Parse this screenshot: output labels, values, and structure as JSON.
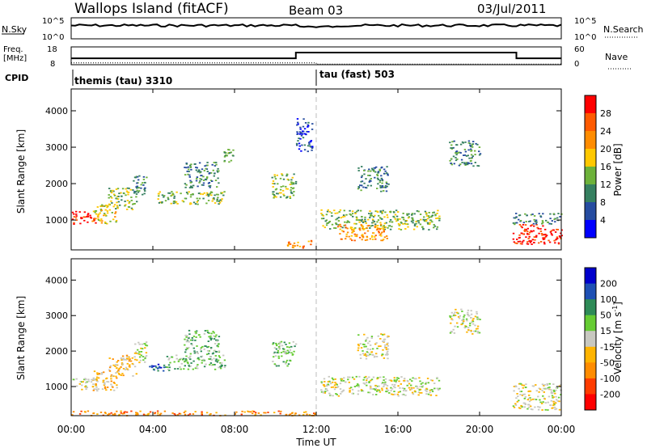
{
  "header": {
    "station": "Wallops Island (fitACF)",
    "beam": "Beam 03",
    "date": "03/Jul/2011"
  },
  "status_panels": {
    "nsky_label": "N.Sky",
    "nsky_ticks": [
      "10^5",
      "10^0"
    ],
    "nsearch_label": "N.Search",
    "nsearch_ticks": [
      "10^5",
      "10^0"
    ],
    "freq_label": "Freq.",
    "freq_unit": "[MHz]",
    "freq_ticks": [
      "18",
      "8"
    ],
    "nave_label": "Nave",
    "nave_ticks": [
      "60",
      "0"
    ],
    "cpid_label": "CPID",
    "cpid_segments": [
      {
        "name": "themis (tau) 3310",
        "start_hour": 0,
        "end_hour": 12
      },
      {
        "name": "tau (fast) 503",
        "start_hour": 12,
        "end_hour": 24
      }
    ],
    "freq_series": {
      "x_hours": [
        0,
        11,
        11,
        21.8,
        21.8,
        24
      ],
      "values_mhz": [
        11.6,
        11.6,
        14.8,
        14.8,
        11.6,
        11.6
      ]
    },
    "nave_series": {
      "x_hours": [
        0,
        12,
        12,
        24
      ],
      "values": [
        6,
        6,
        2,
        2
      ]
    }
  },
  "chart_data": [
    {
      "type": "heatmap",
      "name": "power",
      "ylabel": "Slant Range [km]",
      "yticks": [
        "1000",
        "2000",
        "3000",
        "4000"
      ],
      "ylim": [
        180,
        4600
      ],
      "xlim": [
        0,
        24
      ],
      "colorbar_label": "Power [dB]",
      "colorbar_ticks": [
        "4",
        "8",
        "12",
        "16",
        "20",
        "24",
        "28"
      ],
      "colorbar_colors": [
        "#0000ff",
        "#264ca0",
        "#368060",
        "#6db23a",
        "#ffc800",
        "#ff8c00",
        "#ff5a00",
        "#ff0000"
      ],
      "regions": [
        {
          "t": [
            0,
            1.2
          ],
          "r": [
            900,
            1250
          ],
          "level": 7
        },
        {
          "t": [
            1.0,
            2.2
          ],
          "r": [
            900,
            1450
          ],
          "level": 4
        },
        {
          "t": [
            1.8,
            3.2
          ],
          "r": [
            1300,
            1900
          ],
          "level": 3
        },
        {
          "t": [
            3.0,
            3.7
          ],
          "r": [
            1700,
            2300
          ],
          "level": 2
        },
        {
          "t": [
            4.2,
            7.5
          ],
          "r": [
            1450,
            1800
          ],
          "level": 3
        },
        {
          "t": [
            5.5,
            7.2
          ],
          "r": [
            1900,
            2600
          ],
          "level": 2
        },
        {
          "t": [
            7.4,
            7.9
          ],
          "r": [
            2600,
            3000
          ],
          "level": 3
        },
        {
          "t": [
            9.8,
            11.0
          ],
          "r": [
            1600,
            2300
          ],
          "level": 3
        },
        {
          "t": [
            10.5,
            11.8
          ],
          "r": [
            250,
            450
          ],
          "level": 5
        },
        {
          "t": [
            11.0,
            11.8
          ],
          "r": [
            2900,
            3800
          ],
          "level": 1
        },
        {
          "t": [
            12.2,
            18.0
          ],
          "r": [
            750,
            1300
          ],
          "level": 3
        },
        {
          "t": [
            13.0,
            15.5
          ],
          "r": [
            450,
            900
          ],
          "level": 5
        },
        {
          "t": [
            14.0,
            15.5
          ],
          "r": [
            1800,
            2500
          ],
          "level": 2
        },
        {
          "t": [
            18.5,
            20.0
          ],
          "r": [
            2500,
            3200
          ],
          "level": 2
        },
        {
          "t": [
            21.6,
            24.0
          ],
          "r": [
            350,
            900
          ],
          "level": 7
        },
        {
          "t": [
            21.6,
            24.0
          ],
          "r": [
            900,
            1200
          ],
          "level": 2
        }
      ]
    },
    {
      "type": "heatmap",
      "name": "velocity",
      "ylabel": "Slant Range [km]",
      "yticks": [
        "1000",
        "2000",
        "3000",
        "4000"
      ],
      "ylim": [
        180,
        4600
      ],
      "xlim": [
        0,
        24
      ],
      "colorbar_label": "Velocity [m s",
      "colorbar_label_sup": "-1",
      "colorbar_label_end": "]",
      "colorbar_ticks": [
        "200",
        "100",
        "50",
        "15",
        "-15",
        "-50",
        "-100",
        "-200"
      ],
      "colorbar_colors": [
        "#0000cc",
        "#1e50b4",
        "#2e8b57",
        "#66cc33",
        "#c8c8c0",
        "#ffb400",
        "#ff8c00",
        "#ff3c00",
        "#ff0000"
      ],
      "regions": [
        {
          "t": [
            0,
            1.2
          ],
          "r": [
            900,
            1250
          ],
          "level": 4
        },
        {
          "t": [
            1.0,
            2.2
          ],
          "r": [
            900,
            1450
          ],
          "level": 5
        },
        {
          "t": [
            1.8,
            3.2
          ],
          "r": [
            1300,
            1900
          ],
          "level": 5
        },
        {
          "t": [
            3.0,
            3.7
          ],
          "r": [
            1700,
            2300
          ],
          "level": 4
        },
        {
          "t": [
            3.8,
            4.8
          ],
          "r": [
            1450,
            1650
          ],
          "level": 1
        },
        {
          "t": [
            4.6,
            7.5
          ],
          "r": [
            1500,
            1900
          ],
          "level": 3
        },
        {
          "t": [
            5.5,
            7.2
          ],
          "r": [
            1900,
            2600
          ],
          "level": 3
        },
        {
          "t": [
            9.8,
            11.0
          ],
          "r": [
            1600,
            2300
          ],
          "level": 3
        },
        {
          "t": [
            0,
            12.0
          ],
          "r": [
            200,
            330
          ],
          "level": 6
        },
        {
          "t": [
            12.2,
            18.0
          ],
          "r": [
            750,
            1300
          ],
          "level": 4
        },
        {
          "t": [
            14.0,
            15.5
          ],
          "r": [
            1800,
            2500
          ],
          "level": 4
        },
        {
          "t": [
            18.5,
            20.0
          ],
          "r": [
            2500,
            3200
          ],
          "level": 4
        },
        {
          "t": [
            21.6,
            24.0
          ],
          "r": [
            350,
            1100
          ],
          "level": 4
        }
      ]
    }
  ],
  "x_axis": {
    "label": "Time UT",
    "ticks": [
      "00:00",
      "04:00",
      "08:00",
      "12:00",
      "16:00",
      "20:00",
      "00:00"
    ]
  }
}
